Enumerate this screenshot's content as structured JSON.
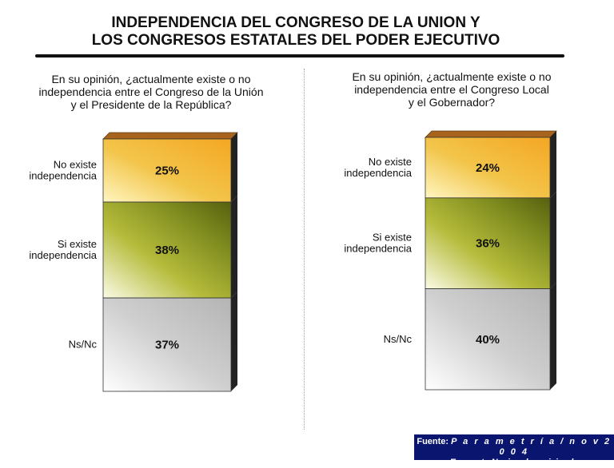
{
  "header": {
    "title_line1": "INDEPENDENCIA DEL CONGRESO DE LA UNION Y",
    "title_line2": "LOS CONGRESOS ESTATALES DEL PODER EJECUTIVO"
  },
  "left_question": {
    "line1": "En su opinión, ¿actualmente existe o no",
    "line2": "independencia entre el Congreso de la Unión",
    "line3": "y el Presidente de la República?"
  },
  "right_question": {
    "line1": "En su opinión, ¿actualmente existe o no",
    "line2": "independencia entre el Congreso Local",
    "line3": "y el Gobernador?"
  },
  "colors": {
    "no_existe": "#f2c54a",
    "si_existe": "#7d8a1e",
    "ns_nc": "#cfcfcf",
    "top_face": "#a8641c",
    "side_face": "#222222"
  },
  "chart_data": [
    {
      "type": "bar",
      "stacked": true,
      "categories": [
        "No existe independencia",
        "Si existe independencia",
        "Ns/Nc"
      ],
      "labels": [
        [
          "No existe",
          "independencia"
        ],
        [
          "Si existe",
          "independencia"
        ],
        [
          "Ns/Nc"
        ]
      ],
      "values": [
        25,
        38,
        37
      ],
      "value_labels": [
        "25%",
        "38%",
        "37%"
      ],
      "ylim": [
        0,
        100
      ]
    },
    {
      "type": "bar",
      "stacked": true,
      "categories": [
        "No existe independencia",
        "Si existe independencia",
        "Ns/Nc"
      ],
      "labels": [
        [
          "No existe",
          "independencia"
        ],
        [
          "Si existe",
          "independencia"
        ],
        [
          "Ns/Nc"
        ]
      ],
      "values": [
        24,
        36,
        40
      ],
      "value_labels": [
        "24%",
        "36%",
        "40%"
      ],
      "ylim": [
        0,
        100
      ]
    }
  ],
  "footer": {
    "source_label": "Fuente:",
    "source_name": "P a r a m e t r í a / n o v 2 0 0 4",
    "subtitle": "Encuesta Nacional en vivienda"
  }
}
